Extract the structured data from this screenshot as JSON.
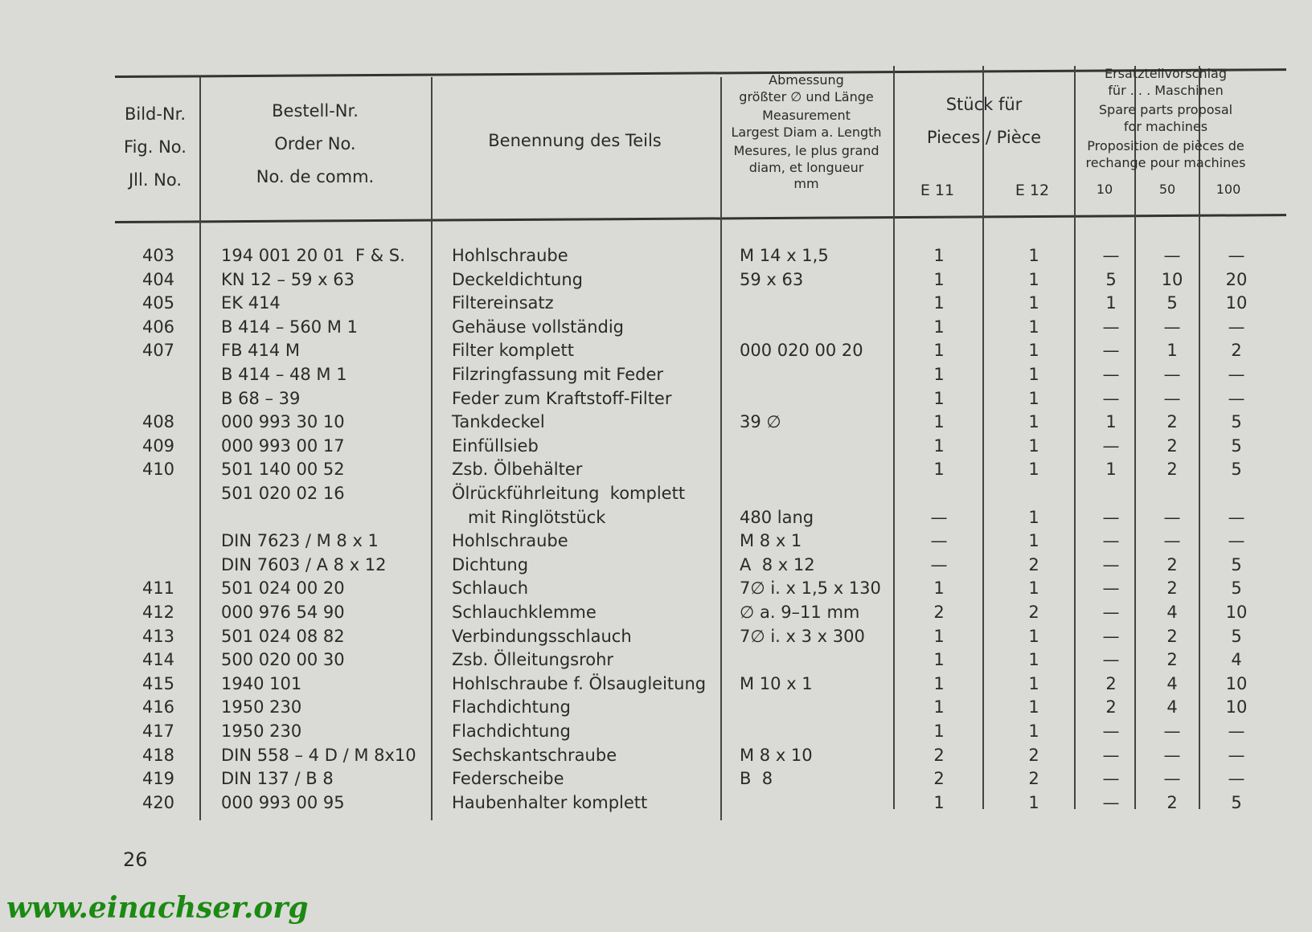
{
  "header": {
    "fig": [
      "Bild-Nr.",
      "Fig. No.",
      "Jll. No."
    ],
    "order": [
      "Bestell-Nr.",
      "Order No.",
      "No. de comm."
    ],
    "name": "Benennung des Teils",
    "measurement": [
      "Abmessung",
      "größter ∅ und Länge",
      "Measurement",
      "Largest Diam a. Length",
      "Mesures, le plus grand",
      "diam, et longueur",
      "mm"
    ],
    "pieces": [
      "Stück für",
      "Pieces / Pièce"
    ],
    "pieces_sub": [
      "E 11",
      "E 12"
    ],
    "proposal": [
      "Ersatzteilvorschlag",
      "für . . . Maschinen",
      "Spare parts proposal",
      "for machines",
      "Proposition de pièces de",
      "rechange pour machines"
    ],
    "proposal_sub": [
      "10",
      "50",
      "100"
    ]
  },
  "table": {
    "rows": [
      [
        "403",
        "194 001 20 01  F & S.",
        "Hohlschraube",
        "M 14 x 1,5",
        "1",
        "1",
        "—",
        "—",
        "—"
      ],
      [
        "404",
        "KN 12 – 59 x 63",
        "Deckeldichtung",
        "59 x 63",
        "1",
        "1",
        "5",
        "10",
        "20"
      ],
      [
        "405",
        "EK 414",
        "Filtereinsatz",
        null,
        "1",
        "1",
        "1",
        "5",
        "10"
      ],
      [
        "406",
        "B 414 – 560 M 1",
        "Gehäuse vollständig",
        null,
        "1",
        "1",
        "—",
        "—",
        "—"
      ],
      [
        "407",
        "FB 414 M",
        "Filter komplett",
        "000 020 00 20",
        "1",
        "1",
        "—",
        "1",
        "2"
      ],
      [
        null,
        "B 414 – 48 M 1",
        "Filzringfassung mit Feder",
        null,
        "1",
        "1",
        "—",
        "—",
        "—"
      ],
      [
        null,
        "B 68 – 39",
        "Feder zum Kraftstoff-Filter",
        null,
        "1",
        "1",
        "—",
        "—",
        "—"
      ],
      [
        "408",
        "000 993 30 10",
        "Tankdeckel",
        "39 ∅",
        "1",
        "1",
        "1",
        "2",
        "5"
      ],
      [
        "409",
        "000 993 00 17",
        "Einfüllsieb",
        null,
        "1",
        "1",
        "—",
        "2",
        "5"
      ],
      [
        "410",
        "501 140 00 52",
        "Zsb. Ölbehälter",
        null,
        "1",
        "1",
        "1",
        "2",
        "5"
      ],
      [
        null,
        "501 020 02 16",
        "Ölrückführleitung  komplett",
        null,
        null,
        null,
        null,
        null,
        null
      ],
      [
        null,
        null,
        "   mit Ringlötstück",
        "480 lang",
        "—",
        "1",
        "—",
        "—",
        "—"
      ],
      [
        null,
        "DIN 7623 / M 8 x 1",
        "Hohlschraube",
        "M 8 x 1",
        "—",
        "1",
        "—",
        "—",
        "—"
      ],
      [
        null,
        "DIN 7603 / A 8 x 12",
        "Dichtung",
        "A  8 x 12",
        "—",
        "2",
        "—",
        "2",
        "5"
      ],
      [
        "411",
        "501 024 00 20",
        "Schlauch",
        "7∅ i. x 1,5 x 130",
        "1",
        "1",
        "—",
        "2",
        "5"
      ],
      [
        "412",
        "000 976 54 90",
        "Schlauchklemme",
        "∅ a. 9–11 mm",
        "2",
        "2",
        "—",
        "4",
        "10"
      ],
      [
        "413",
        "501 024 08 82",
        "Verbindungsschlauch",
        "7∅ i. x 3 x 300",
        "1",
        "1",
        "—",
        "2",
        "5"
      ],
      [
        "414",
        "500 020 00 30",
        "Zsb. Ölleitungsrohr",
        null,
        "1",
        "1",
        "—",
        "2",
        "4"
      ],
      [
        "415",
        "1940 101",
        "Hohlschraube f. Ölsaugleitung",
        "M 10 x 1",
        "1",
        "1",
        "2",
        "4",
        "10"
      ],
      [
        "416",
        "1950 230",
        "Flachdichtung",
        null,
        "1",
        "1",
        "2",
        "4",
        "10"
      ],
      [
        "417",
        "1950 230",
        "Flachdichtung",
        null,
        "1",
        "1",
        "—",
        "—",
        "—"
      ],
      [
        "418",
        "DIN 558 – 4 D / M 8x10",
        "Sechskantschraube",
        "M 8 x 10",
        "2",
        "2",
        "—",
        "—",
        "—"
      ],
      [
        "419",
        "DIN 137 / B 8",
        "Federscheibe",
        "B  8",
        "2",
        "2",
        "—",
        "—",
        "—"
      ],
      [
        "420",
        "000 993 00 95",
        "Haubenhalter komplett",
        null,
        "1",
        "1",
        "—",
        "2",
        "5"
      ]
    ]
  },
  "footer": {
    "page": "26",
    "website": "www.einachser.org"
  }
}
